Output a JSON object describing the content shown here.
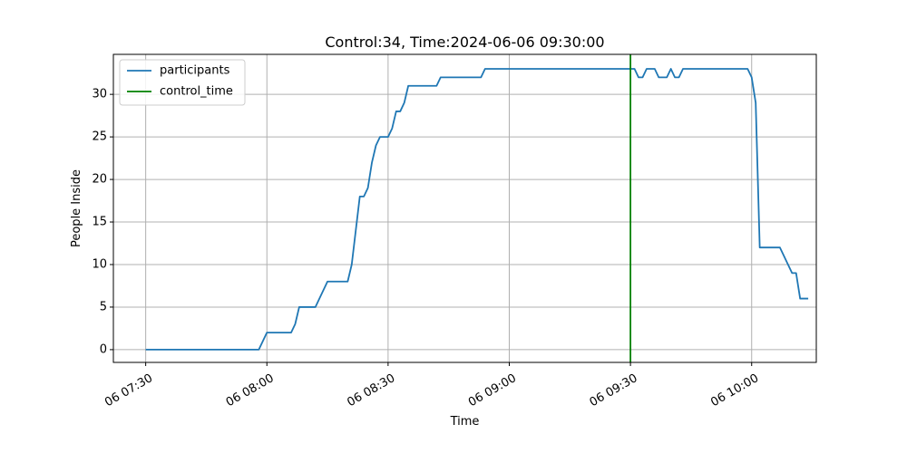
{
  "chart_data": {
    "type": "line",
    "title": "Control:34, Time:2024-06-06 09:30:00",
    "xlabel": "Time",
    "ylabel": "People Inside",
    "xlim": [
      "2024-06-06 07:22",
      "2024-06-06 10:16"
    ],
    "ylim": [
      -1.5,
      34.7
    ],
    "grid": true,
    "legend_position": "top-left",
    "x_ticks": [
      {
        "time": "2024-06-06 07:30",
        "label": "06 07:30"
      },
      {
        "time": "2024-06-06 08:00",
        "label": "06 08:00"
      },
      {
        "time": "2024-06-06 08:30",
        "label": "06 08:30"
      },
      {
        "time": "2024-06-06 09:00",
        "label": "06 09:00"
      },
      {
        "time": "2024-06-06 09:30",
        "label": "06 09:30"
      },
      {
        "time": "2024-06-06 10:00",
        "label": "06 10:00"
      }
    ],
    "y_ticks": [
      0,
      5,
      10,
      15,
      20,
      25,
      30
    ],
    "series": [
      {
        "name": "participants",
        "color": "#1f77b4",
        "points": [
          [
            "2024-06-06 07:30",
            0
          ],
          [
            "2024-06-06 07:58",
            0
          ],
          [
            "2024-06-06 08:00",
            2
          ],
          [
            "2024-06-06 08:06",
            2
          ],
          [
            "2024-06-06 08:07",
            3
          ],
          [
            "2024-06-06 08:08",
            5
          ],
          [
            "2024-06-06 08:12",
            5
          ],
          [
            "2024-06-06 08:15",
            8
          ],
          [
            "2024-06-06 08:20",
            8
          ],
          [
            "2024-06-06 08:21",
            10
          ],
          [
            "2024-06-06 08:22",
            14
          ],
          [
            "2024-06-06 08:23",
            18
          ],
          [
            "2024-06-06 08:24",
            18
          ],
          [
            "2024-06-06 08:25",
            19
          ],
          [
            "2024-06-06 08:26",
            22
          ],
          [
            "2024-06-06 08:27",
            24
          ],
          [
            "2024-06-06 08:28",
            25
          ],
          [
            "2024-06-06 08:30",
            25
          ],
          [
            "2024-06-06 08:31",
            26
          ],
          [
            "2024-06-06 08:32",
            28
          ],
          [
            "2024-06-06 08:33",
            28
          ],
          [
            "2024-06-06 08:34",
            29
          ],
          [
            "2024-06-06 08:35",
            31
          ],
          [
            "2024-06-06 08:42",
            31
          ],
          [
            "2024-06-06 08:43",
            32
          ],
          [
            "2024-06-06 08:53",
            32
          ],
          [
            "2024-06-06 08:54",
            33
          ],
          [
            "2024-06-06 09:31",
            33
          ],
          [
            "2024-06-06 09:32",
            32
          ],
          [
            "2024-06-06 09:33",
            32
          ],
          [
            "2024-06-06 09:34",
            33
          ],
          [
            "2024-06-06 09:36",
            33
          ],
          [
            "2024-06-06 09:37",
            32
          ],
          [
            "2024-06-06 09:39",
            32
          ],
          [
            "2024-06-06 09:40",
            33
          ],
          [
            "2024-06-06 09:41",
            32
          ],
          [
            "2024-06-06 09:42",
            32
          ],
          [
            "2024-06-06 09:43",
            33
          ],
          [
            "2024-06-06 09:59",
            33
          ],
          [
            "2024-06-06 10:00",
            32
          ],
          [
            "2024-06-06 10:01",
            29
          ],
          [
            "2024-06-06 10:02",
            12
          ],
          [
            "2024-06-06 10:07",
            12
          ],
          [
            "2024-06-06 10:10",
            9
          ],
          [
            "2024-06-06 10:11",
            9
          ],
          [
            "2024-06-06 10:12",
            6
          ],
          [
            "2024-06-06 10:14",
            6
          ]
        ]
      },
      {
        "name": "control_time",
        "color": "#008000",
        "vertical_line_at": "2024-06-06 09:30"
      }
    ]
  }
}
